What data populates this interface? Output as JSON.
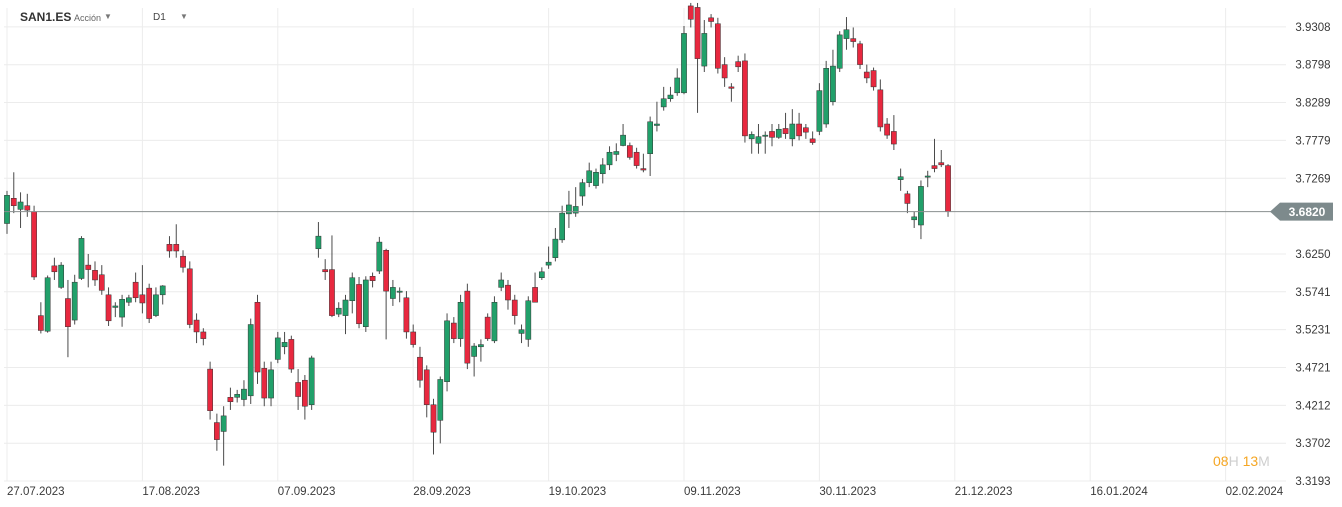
{
  "toolbar": {
    "symbol": "SAN1.ES",
    "instrument_type": "Acción",
    "timeframe": "D1"
  },
  "countdown": {
    "hours": "08",
    "hours_unit": "H",
    "minutes": "13",
    "minutes_unit": "M"
  },
  "colors": {
    "up": "#21a06a",
    "down": "#e8283f",
    "wick": "#4a4a4a",
    "grid": "#ececec",
    "current_price_line": "#8a8f8f",
    "current_price_badge": "#7d8a8c"
  },
  "icons": [
    "dropdown-caret-icon"
  ],
  "chart_data": {
    "type": "candlestick",
    "x_labels": [
      "27.07.2023",
      "17.08.2023",
      "07.09.2023",
      "28.09.2023",
      "19.10.2023",
      "09.11.2023",
      "30.11.2023",
      "21.12.2023",
      "16.01.2024",
      "02.02.2024"
    ],
    "y_ticks": [
      "3.9308",
      "3.8798",
      "3.8289",
      "3.7779",
      "3.7269",
      "3.6820",
      "3.6250",
      "3.5741",
      "3.5231",
      "3.4721",
      "3.4212",
      "3.3702",
      "3.3193"
    ],
    "ylim": [
      3.3193,
      3.9562
    ],
    "grid": true,
    "current_price": "3.6820",
    "candles": [
      [
        3.666,
        3.704,
        3.71,
        3.652
      ],
      [
        3.7,
        3.69,
        3.735,
        3.68
      ],
      [
        3.685,
        3.695,
        3.708,
        3.66
      ],
      [
        3.69,
        3.684,
        3.706,
        3.675
      ],
      [
        3.682,
        3.594,
        3.69,
        3.59
      ],
      [
        3.542,
        3.522,
        3.56,
        3.518
      ],
      [
        3.521,
        3.593,
        3.596,
        3.519
      ],
      [
        3.609,
        3.601,
        3.62,
        3.59
      ],
      [
        3.58,
        3.61,
        3.614,
        3.578
      ],
      [
        3.565,
        3.527,
        3.59,
        3.486
      ],
      [
        3.536,
        3.587,
        3.597,
        3.53
      ],
      [
        3.592,
        3.646,
        3.649,
        3.59
      ],
      [
        3.61,
        3.604,
        3.625,
        3.58
      ],
      [
        3.603,
        3.59,
        3.615,
        3.582
      ],
      [
        3.597,
        3.576,
        3.61,
        3.57
      ],
      [
        3.57,
        3.535,
        3.58,
        3.528
      ],
      [
        3.553,
        3.555,
        3.56,
        3.54
      ],
      [
        3.54,
        3.564,
        3.57,
        3.527
      ],
      [
        3.56,
        3.566,
        3.57,
        3.555
      ],
      [
        3.587,
        3.566,
        3.6,
        3.56
      ],
      [
        3.57,
        3.559,
        3.61,
        3.545
      ],
      [
        3.579,
        3.538,
        3.585,
        3.532
      ],
      [
        3.542,
        3.57,
        3.58,
        3.54
      ],
      [
        3.57,
        3.582,
        3.583,
        3.557
      ],
      [
        3.638,
        3.629,
        3.649,
        3.62
      ],
      [
        3.638,
        3.629,
        3.665,
        3.62
      ],
      [
        3.622,
        3.607,
        3.63,
        3.6
      ],
      [
        3.605,
        3.53,
        3.615,
        3.525
      ],
      [
        3.536,
        3.52,
        3.545,
        3.505
      ],
      [
        3.52,
        3.511,
        3.525,
        3.502
      ],
      [
        3.47,
        3.414,
        3.48,
        3.402
      ],
      [
        3.398,
        3.375,
        3.41,
        3.36
      ],
      [
        3.386,
        3.407,
        3.42,
        3.34
      ],
      [
        3.432,
        3.426,
        3.445,
        3.415
      ],
      [
        3.432,
        3.436,
        3.442,
        3.425
      ],
      [
        3.429,
        3.443,
        3.455,
        3.42
      ],
      [
        3.434,
        3.53,
        3.538,
        3.423
      ],
      [
        3.56,
        3.466,
        3.57,
        3.45
      ],
      [
        3.471,
        3.431,
        3.48,
        3.42
      ],
      [
        3.431,
        3.469,
        3.48,
        3.42
      ],
      [
        3.483,
        3.512,
        3.52,
        3.478
      ],
      [
        3.5,
        3.506,
        3.52,
        3.49
      ],
      [
        3.51,
        3.47,
        3.515,
        3.465
      ],
      [
        3.452,
        3.433,
        3.47,
        3.415
      ],
      [
        3.455,
        3.42,
        3.462,
        3.402
      ],
      [
        3.422,
        3.485,
        3.488,
        3.415
      ],
      [
        3.632,
        3.649,
        3.668,
        3.62
      ],
      [
        3.604,
        3.601,
        3.618,
        3.59
      ],
      [
        3.604,
        3.542,
        3.65,
        3.54
      ],
      [
        3.544,
        3.552,
        3.56,
        3.54
      ],
      [
        3.542,
        3.563,
        3.57,
        3.517
      ],
      [
        3.562,
        3.593,
        3.6,
        3.545
      ],
      [
        3.584,
        3.531,
        3.594,
        3.525
      ],
      [
        3.527,
        3.59,
        3.595,
        3.52
      ],
      [
        3.595,
        3.589,
        3.6,
        3.58
      ],
      [
        3.602,
        3.641,
        3.648,
        3.598
      ],
      [
        3.63,
        3.575,
        3.632,
        3.51
      ],
      [
        3.565,
        3.58,
        3.59,
        3.555
      ],
      [
        3.575,
        3.575,
        3.58,
        3.56
      ],
      [
        3.566,
        3.52,
        3.575,
        3.511
      ],
      [
        3.52,
        3.503,
        3.53,
        3.499
      ],
      [
        3.486,
        3.455,
        3.5,
        3.445
      ],
      [
        3.469,
        3.422,
        3.475,
        3.405
      ],
      [
        3.422,
        3.385,
        3.43,
        3.355
      ],
      [
        3.401,
        3.456,
        3.46,
        3.37
      ],
      [
        3.453,
        3.535,
        3.545,
        3.44
      ],
      [
        3.532,
        3.511,
        3.54,
        3.505
      ],
      [
        3.511,
        3.56,
        3.57,
        3.5
      ],
      [
        3.575,
        3.478,
        3.585,
        3.47
      ],
      [
        3.487,
        3.501,
        3.505,
        3.46
      ],
      [
        3.5,
        3.503,
        3.51,
        3.48
      ],
      [
        3.54,
        3.511,
        3.545,
        3.508
      ],
      [
        3.508,
        3.56,
        3.568,
        3.505
      ],
      [
        3.58,
        3.59,
        3.6,
        3.575
      ],
      [
        3.583,
        3.563,
        3.59,
        3.55
      ],
      [
        3.563,
        3.542,
        3.57,
        3.53
      ],
      [
        3.518,
        3.523,
        3.53,
        3.505
      ],
      [
        3.51,
        3.562,
        3.568,
        3.5
      ],
      [
        3.58,
        3.56,
        3.6,
        3.57
      ],
      [
        3.593,
        3.601,
        3.607,
        3.59
      ],
      [
        3.61,
        3.614,
        3.635,
        3.605
      ],
      [
        3.62,
        3.645,
        3.66,
        3.615
      ],
      [
        3.644,
        3.68,
        3.69,
        3.64
      ],
      [
        3.679,
        3.691,
        3.71,
        3.66
      ],
      [
        3.68,
        3.689,
        3.715,
        3.675
      ],
      [
        3.703,
        3.721,
        3.726,
        3.69
      ],
      [
        3.721,
        3.737,
        3.748,
        3.715
      ],
      [
        3.717,
        3.735,
        3.74,
        3.713
      ],
      [
        3.733,
        3.745,
        3.754,
        3.72
      ],
      [
        3.745,
        3.762,
        3.77,
        3.738
      ],
      [
        3.759,
        3.763,
        3.774,
        3.75
      ],
      [
        3.771,
        3.785,
        3.8,
        3.77
      ],
      [
        3.771,
        3.755,
        3.775,
        3.752
      ],
      [
        3.762,
        3.744,
        3.768,
        3.74
      ],
      [
        3.74,
        3.738,
        3.76,
        3.735
      ],
      [
        3.76,
        3.803,
        3.81,
        3.73
      ],
      [
        3.798,
        3.8,
        3.83,
        3.79
      ],
      [
        3.823,
        3.834,
        3.85,
        3.818
      ],
      [
        3.834,
        3.839,
        3.85,
        3.83
      ],
      [
        3.842,
        3.862,
        3.875,
        3.838
      ],
      [
        3.842,
        3.922,
        3.932,
        3.84
      ],
      [
        3.959,
        3.941,
        3.963,
        3.93
      ],
      [
        3.957,
        3.888,
        3.963,
        3.815
      ],
      [
        3.878,
        3.922,
        3.94,
        3.87
      ],
      [
        3.943,
        3.938,
        3.948,
        3.93
      ],
      [
        3.935,
        3.875,
        3.943,
        3.868
      ],
      [
        3.88,
        3.862,
        3.89,
        3.85
      ],
      [
        3.85,
        3.848,
        3.855,
        3.83
      ],
      [
        3.884,
        3.877,
        3.892,
        3.87
      ],
      [
        3.885,
        3.784,
        3.895,
        3.775
      ],
      [
        3.78,
        3.786,
        3.79,
        3.76
      ],
      [
        3.774,
        3.783,
        3.8,
        3.76
      ],
      [
        3.785,
        3.785,
        3.79,
        3.76
      ],
      [
        3.79,
        3.782,
        3.8,
        3.77
      ],
      [
        3.782,
        3.793,
        3.8,
        3.78
      ],
      [
        3.794,
        3.787,
        3.815,
        3.78
      ],
      [
        3.78,
        3.8,
        3.82,
        3.77
      ],
      [
        3.8,
        3.784,
        3.815,
        3.778
      ],
      [
        3.795,
        3.789,
        3.8,
        3.78
      ],
      [
        3.78,
        3.775,
        3.79,
        3.772
      ],
      [
        3.79,
        3.845,
        3.855,
        3.785
      ],
      [
        3.8,
        3.875,
        3.885,
        3.795
      ],
      [
        3.83,
        3.878,
        3.9,
        3.825
      ],
      [
        3.875,
        3.92,
        3.925,
        3.87
      ],
      [
        3.915,
        3.927,
        3.944,
        3.9
      ],
      [
        3.915,
        3.911,
        3.93,
        3.903
      ],
      [
        3.908,
        3.88,
        3.912,
        3.874
      ],
      [
        3.87,
        3.862,
        3.88,
        3.855
      ],
      [
        3.872,
        3.85,
        3.876,
        3.845
      ],
      [
        3.846,
        3.796,
        3.86,
        3.79
      ],
      [
        3.8,
        3.785,
        3.808,
        3.78
      ],
      [
        3.79,
        3.773,
        3.812,
        3.765
      ],
      [
        3.725,
        3.729,
        3.74,
        3.71
      ],
      [
        3.706,
        3.693,
        3.71,
        3.68
      ],
      [
        3.671,
        3.675,
        3.682,
        3.66
      ],
      [
        3.664,
        3.716,
        3.724,
        3.645
      ],
      [
        3.73,
        3.73,
        3.737,
        3.715
      ],
      [
        3.744,
        3.74,
        3.78,
        3.735
      ],
      [
        3.748,
        3.745,
        3.765,
        3.742
      ],
      [
        3.744,
        3.682,
        3.746,
        3.675
      ]
    ]
  }
}
